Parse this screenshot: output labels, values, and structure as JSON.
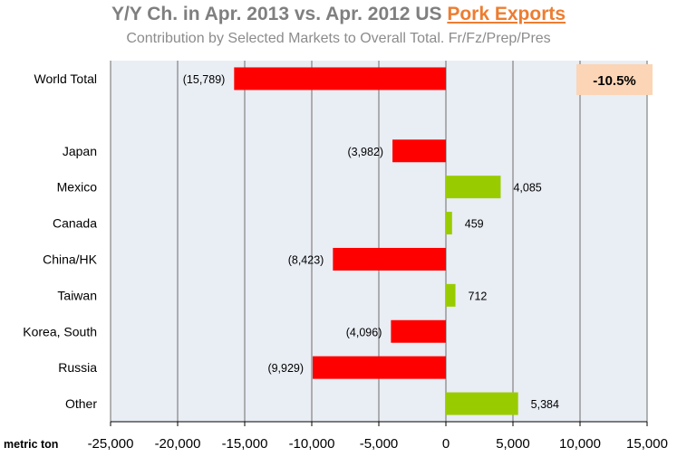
{
  "title": {
    "prefix": "Y/Y Ch.  in Apr. 2013 vs. Apr. 2012 US ",
    "highlight": "Pork Exports"
  },
  "subtitle": "Contribution  by Selected Markets to Overall Total. Fr/Fz/Prep/Pres",
  "axis_unit_label": "metric ton",
  "callout": {
    "text": "-10.5%",
    "color": "#fbd5b5"
  },
  "colors": {
    "negative": "#ff0000",
    "positive": "#99cc00",
    "plot_bg": "#e9edf4",
    "grid": "#6d6d6d"
  },
  "chart_data": {
    "type": "bar",
    "orientation": "horizontal",
    "categories": [
      "World Total",
      "",
      "Japan",
      "Mexico",
      "Canada",
      "China/HK",
      "Taiwan",
      "Korea, South",
      "Russia",
      "Other"
    ],
    "values": [
      -15789,
      null,
      -3982,
      4085,
      459,
      -8423,
      712,
      -4096,
      -9929,
      5384
    ],
    "data_labels": [
      "(15,789)",
      "",
      "(3,982)",
      "4,085",
      "459",
      "(8,423)",
      "712",
      "(4,096)",
      "(9,929)",
      "5,384"
    ],
    "xlim": [
      -25000,
      15000
    ],
    "xticks": [
      -25000,
      -20000,
      -15000,
      -10000,
      -5000,
      0,
      5000,
      10000,
      15000
    ],
    "xtick_labels": [
      "-25,000",
      "-20,000",
      "-15,000",
      "-10,000",
      "-5,000",
      "0",
      "5,000",
      "10,000",
      "15,000"
    ],
    "grid": true,
    "xlabel": "metric ton",
    "ylabel": ""
  }
}
